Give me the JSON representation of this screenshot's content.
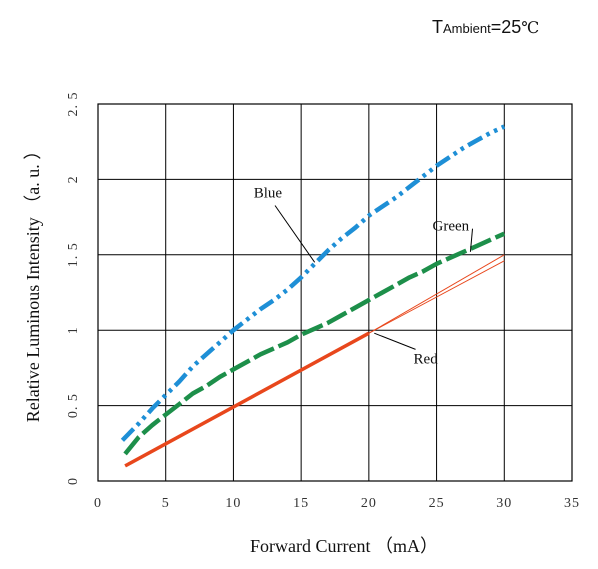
{
  "condition": {
    "prefix": "T",
    "subscript": "Ambient",
    "value": "=25",
    "unit": "℃"
  },
  "chart_data": {
    "type": "line",
    "title": "",
    "xlabel": "Forward  Current  （mA）",
    "ylabel": "Relative Luminous Intensity  （a. u. ）",
    "xlim": [
      0,
      35
    ],
    "ylim": [
      0,
      2.5
    ],
    "grid": true,
    "x_ticks": [
      "0",
      "5",
      "10",
      "15",
      "20",
      "25",
      "30",
      "35"
    ],
    "y_ticks": [
      "0",
      "0. 5",
      "1",
      "1. 5",
      "2",
      "2. 5"
    ],
    "series": [
      {
        "name": "Blue",
        "color": "#1e8fd6",
        "style": "dash-dot-dot",
        "points": [
          [
            1.8,
            0.27
          ],
          [
            3,
            0.38
          ],
          [
            4,
            0.48
          ],
          [
            5,
            0.57
          ],
          [
            6,
            0.66
          ],
          [
            7,
            0.76
          ],
          [
            8,
            0.84
          ],
          [
            9,
            0.92
          ],
          [
            10,
            1.0
          ],
          [
            11,
            1.07
          ],
          [
            12,
            1.14
          ],
          [
            13,
            1.2
          ],
          [
            14,
            1.27
          ],
          [
            15,
            1.35
          ],
          [
            16,
            1.44
          ],
          [
            17,
            1.53
          ],
          [
            18,
            1.61
          ],
          [
            19,
            1.68
          ],
          [
            20,
            1.76
          ],
          [
            21,
            1.82
          ],
          [
            22,
            1.88
          ],
          [
            23,
            1.95
          ],
          [
            24,
            2.02
          ],
          [
            25,
            2.09
          ],
          [
            26,
            2.15
          ],
          [
            27,
            2.21
          ],
          [
            28,
            2.26
          ],
          [
            29,
            2.31
          ],
          [
            30,
            2.35
          ]
        ]
      },
      {
        "name": "Green",
        "color": "#1d8f4a",
        "style": "long-dash",
        "points": [
          [
            2,
            0.18
          ],
          [
            3,
            0.29
          ],
          [
            4,
            0.37
          ],
          [
            5,
            0.44
          ],
          [
            6,
            0.51
          ],
          [
            7,
            0.58
          ],
          [
            8,
            0.63
          ],
          [
            9,
            0.69
          ],
          [
            10,
            0.74
          ],
          [
            11,
            0.79
          ],
          [
            12,
            0.84
          ],
          [
            13,
            0.88
          ],
          [
            14,
            0.92
          ],
          [
            15,
            0.97
          ],
          [
            16,
            1.01
          ],
          [
            17,
            1.05
          ],
          [
            18,
            1.1
          ],
          [
            19,
            1.15
          ],
          [
            20,
            1.2
          ],
          [
            21,
            1.25
          ],
          [
            22,
            1.3
          ],
          [
            23,
            1.35
          ],
          [
            24,
            1.39
          ],
          [
            25,
            1.44
          ],
          [
            26,
            1.48
          ],
          [
            27,
            1.52
          ],
          [
            28,
            1.56
          ],
          [
            29,
            1.6
          ],
          [
            30,
            1.64
          ]
        ]
      },
      {
        "name": "Red",
        "color": "#e8471c",
        "style": "solid",
        "points": [
          [
            2,
            0.1
          ],
          [
            20,
            0.98
          ]
        ],
        "extrapolation": {
          "color": "#e8471c",
          "upper": [
            [
              20,
              0.98
            ],
            [
              30,
              1.5
            ]
          ],
          "lower": [
            [
              20,
              0.98
            ],
            [
              30,
              1.46
            ]
          ]
        }
      }
    ],
    "annotations": [
      {
        "text": "Blue",
        "series": "Blue",
        "at": [
          16,
          1.45
        ],
        "label_at": [
          11.5,
          1.88
        ]
      },
      {
        "text": "Green",
        "series": "Green",
        "at": [
          27.5,
          1.52
        ],
        "label_at": [
          24.7,
          1.66
        ]
      },
      {
        "text": "Red",
        "series": "Red",
        "at": [
          20.4,
          0.98
        ],
        "label_at": [
          23.3,
          0.78
        ]
      }
    ]
  }
}
